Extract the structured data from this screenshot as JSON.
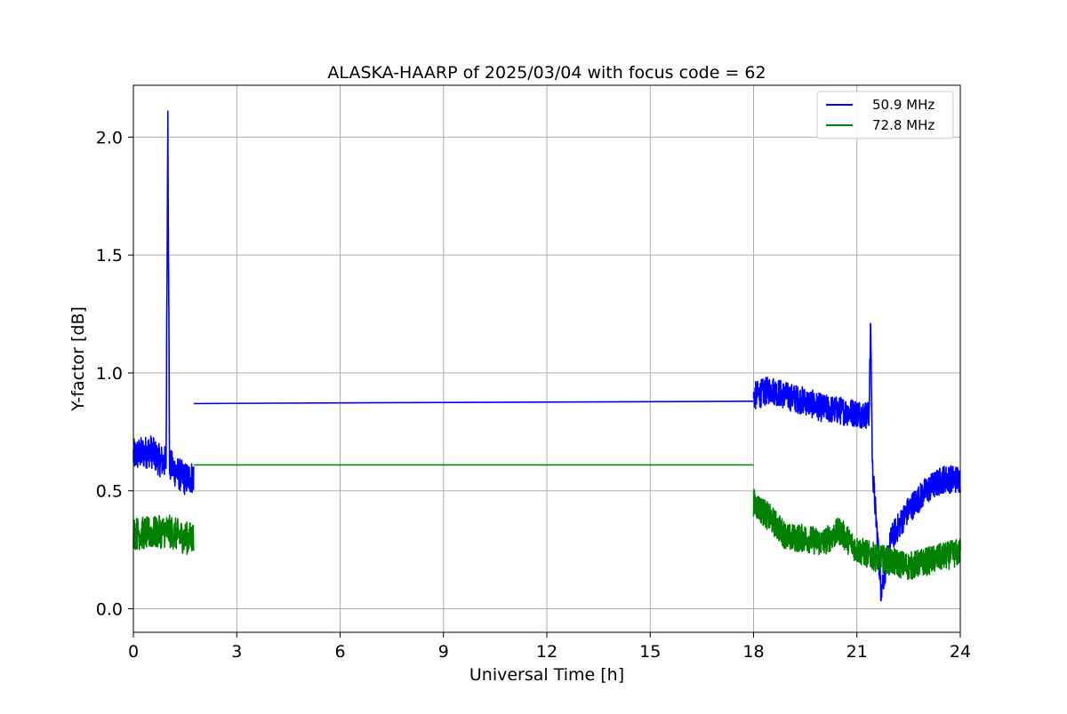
{
  "chart_data": {
    "type": "line",
    "title": "ALASKA-HAARP of 2025/03/04 with focus code = 62",
    "xlabel": "Universal Time [h]",
    "ylabel": "Y-factor [dB]",
    "xlim": [
      0,
      24
    ],
    "ylim": [
      -0.1,
      2.22
    ],
    "x_ticks": [
      0,
      3,
      6,
      9,
      12,
      15,
      18,
      21,
      24
    ],
    "x_tick_labels": [
      "0",
      "3",
      "6",
      "9",
      "12",
      "15",
      "18",
      "21",
      "24"
    ],
    "y_ticks": [
      0.0,
      0.5,
      1.0,
      1.5,
      2.0
    ],
    "y_tick_labels": [
      "0.0",
      "0.5",
      "1.0",
      "1.5",
      "2.0"
    ],
    "grid": true,
    "legend_position": "top-right",
    "series": [
      {
        "name": "50.9 MHz",
        "color": "#0000ff",
        "segments": [
          {
            "x": [
              0,
              0.25,
              0.5,
              0.75,
              0.95,
              1.0,
              1.05,
              1.25,
              1.5,
              1.75
            ],
            "y": [
              0.65,
              0.66,
              0.67,
              0.63,
              0.62,
              2.11,
              0.61,
              0.58,
              0.55,
              0.56
            ],
            "noise": 0.07
          },
          {
            "x": [
              1.75,
              18.0
            ],
            "y": [
              0.87,
              0.88
            ],
            "noise": 0
          },
          {
            "x": [
              18.0,
              18.5,
              19.0,
              19.5,
              20.0,
              20.5,
              21.0,
              21.35,
              21.4,
              21.45,
              21.7,
              22.0,
              22.5,
              23.0,
              23.5,
              24.0
            ],
            "y": [
              0.9,
              0.93,
              0.9,
              0.88,
              0.85,
              0.84,
              0.83,
              0.82,
              1.2,
              0.6,
              0.08,
              0.3,
              0.42,
              0.5,
              0.55,
              0.55
            ],
            "noise": 0.06
          }
        ]
      },
      {
        "name": "72.8 MHz",
        "color": "#008000",
        "segments": [
          {
            "x": [
              0,
              0.5,
              1.0,
              1.5,
              1.75
            ],
            "y": [
              0.32,
              0.32,
              0.33,
              0.3,
              0.3
            ],
            "noise": 0.07
          },
          {
            "x": [
              1.75,
              18.0
            ],
            "y": [
              0.61,
              0.61
            ],
            "noise": 0
          },
          {
            "x": [
              18.0,
              18.5,
              19.0,
              19.5,
              20.0,
              20.5,
              21.0,
              21.5,
              22.0,
              22.5,
              23.0,
              23.5,
              24.0
            ],
            "y": [
              0.45,
              0.38,
              0.3,
              0.3,
              0.28,
              0.33,
              0.25,
              0.22,
              0.2,
              0.18,
              0.2,
              0.22,
              0.24
            ],
            "noise": 0.06
          }
        ]
      }
    ]
  }
}
